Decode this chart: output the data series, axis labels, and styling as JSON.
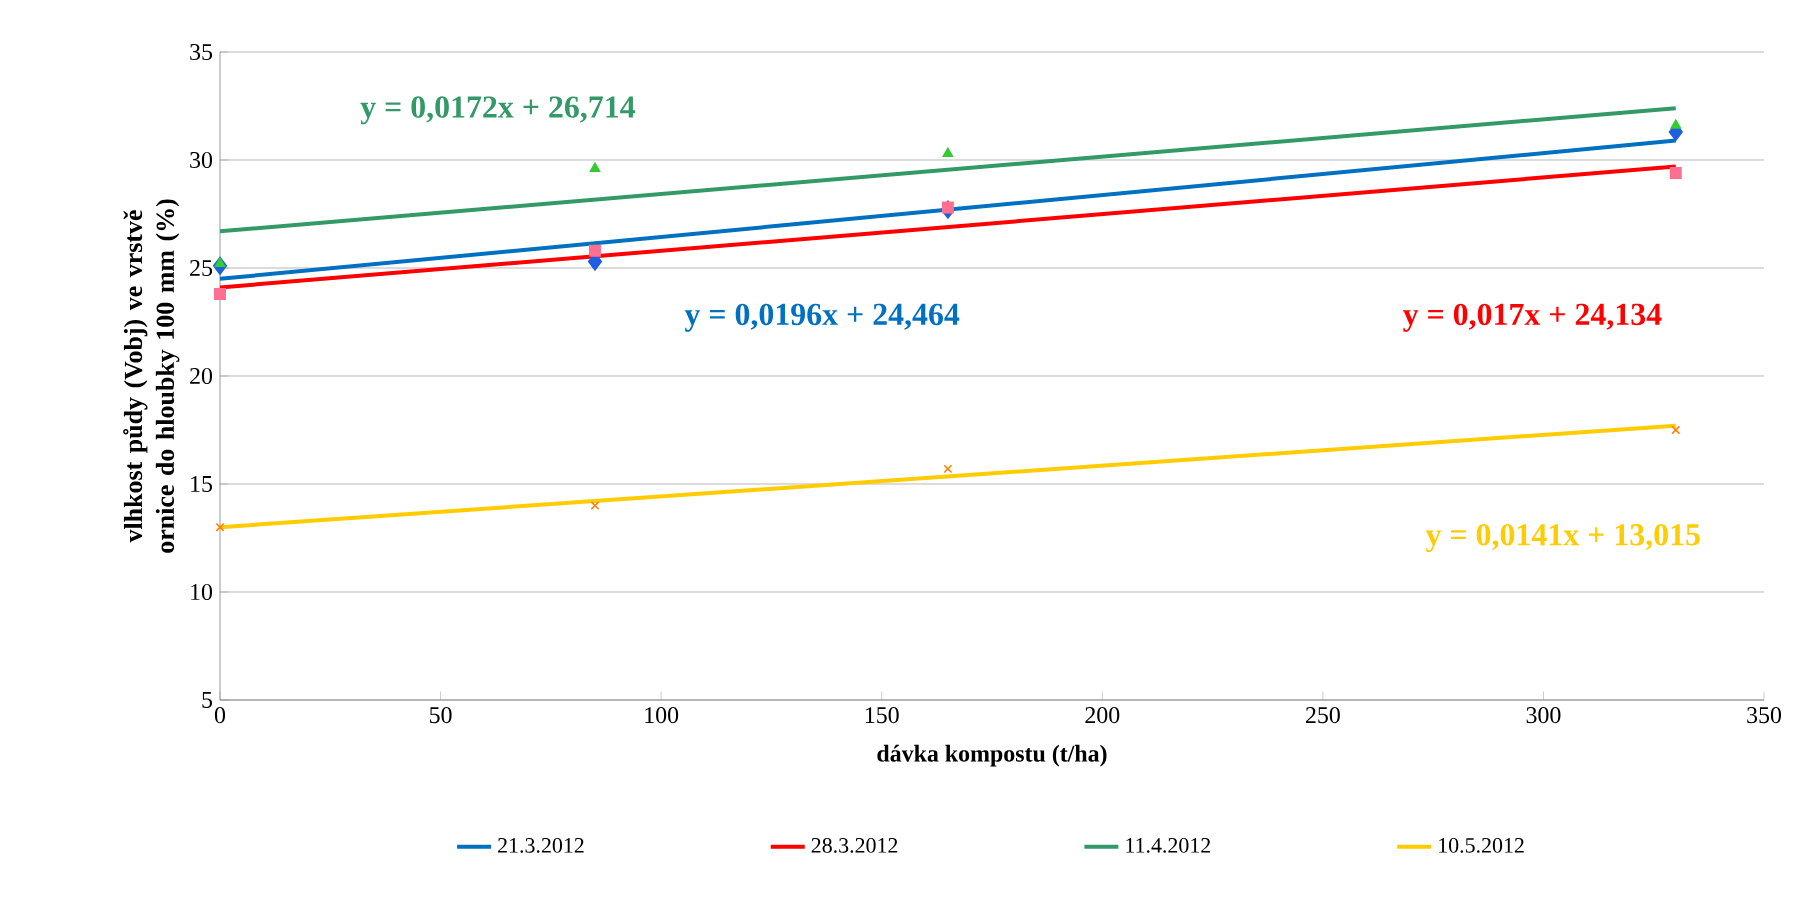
{
  "chart_data": {
    "type": "scatter",
    "xlabel": "dávka kompostu (t/ha)",
    "ylabel": "vlhkost půdy (Vobj) ve vrstvě ornice do hloubky 100 mm (%)",
    "xlim": [
      0,
      350
    ],
    "ylim": [
      5,
      35
    ],
    "xticks": [
      0,
      50,
      100,
      150,
      200,
      250,
      300,
      350
    ],
    "yticks": [
      5,
      10,
      15,
      20,
      25,
      30,
      35
    ],
    "grid": "y",
    "legend": "bottom",
    "series": [
      {
        "type": "line",
        "name": "21.3.2012",
        "color": "#0070c0",
        "x": [
          0,
          330
        ],
        "values": [
          24.5,
          30.9
        ],
        "marker": "none"
      },
      {
        "type": "line",
        "name": "28.3.2012",
        "color": "#ff0000",
        "x": [
          0,
          330
        ],
        "values": [
          24.1,
          29.7
        ],
        "marker": "none"
      },
      {
        "type": "line",
        "name": "11.4.2012",
        "color": "#339966",
        "x": [
          0,
          330
        ],
        "values": [
          26.7,
          32.4
        ],
        "marker": "none"
      },
      {
        "type": "line",
        "name": "10.5.2012",
        "color": "#ffcc00",
        "x": [
          0,
          330
        ],
        "values": [
          13.0,
          17.7
        ],
        "marker": "none"
      },
      {
        "color": "#1f5fe0",
        "x": [
          0,
          85,
          165,
          330
        ],
        "values": [
          25.1,
          25.3,
          27.7,
          31.3
        ],
        "marker": "diamond"
      },
      {
        "color": "#ff6f8f",
        "x": [
          0,
          85,
          165,
          330
        ],
        "values": [
          23.8,
          25.8,
          27.8,
          29.4
        ],
        "marker": "square"
      },
      {
        "color": "#33cc33",
        "x": [
          0,
          85,
          165,
          330
        ],
        "values": [
          25.2,
          29.6,
          30.3,
          31.6
        ],
        "marker": "triangle"
      },
      {
        "color": "#ff8000",
        "x": [
          0,
          85,
          165,
          330
        ],
        "values": [
          13.0,
          14.0,
          15.7,
          17.5
        ],
        "marker": "cross"
      }
    ],
    "annotations": [
      "y = 0,0196x + 24,464",
      "y = 0,017x + 24,134",
      "y = 0,0172x + 26,714",
      "y = 0,0141x + 13,015"
    ]
  }
}
